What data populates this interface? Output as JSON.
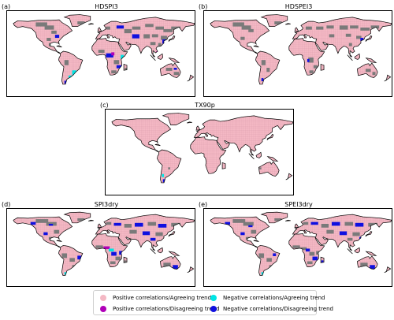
{
  "panels": {
    "a": {
      "label": "(a)",
      "title": "HDSPI3"
    },
    "b": {
      "label": "(b)",
      "title": "HDSPEI3"
    },
    "c": {
      "label": "(c)",
      "title": "TX90p"
    },
    "d": {
      "label": "(d)",
      "title": "SPI3dry"
    },
    "e": {
      "label": "(e)",
      "title": "SPEI3dry"
    }
  },
  "legend": {
    "pos_agree": "Positive correlations/Agreeing trend",
    "pos_disagree": "Positive correlations/Disagreeing trend",
    "neg_agree": "Negative correlations/Agreeing trend",
    "neg_disagree": "Negative correlations/Disagreeing trend"
  },
  "colors": {
    "pos_agree": "#f4b8c4",
    "pos_disagree": "#b000b8",
    "neg_agree": "#00e5e5",
    "neg_disagree": "#1010e0",
    "no_signal": "#7a7a7a",
    "coast": "#000000"
  }
}
